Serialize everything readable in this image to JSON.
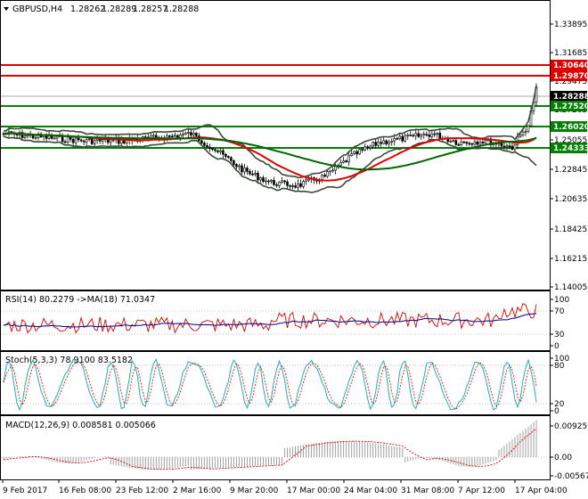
{
  "header": {
    "symbol": "GBPUSD,H4",
    "open": "1.28262",
    "high": "1.28289",
    "low": "1.28257",
    "close": "1.28288"
  },
  "price_pane": {
    "axis_labels": [
      "1.33895",
      "1.31685",
      "1.29475",
      "1.27265",
      "1.25055",
      "1.22845",
      "1.20635",
      "1.18425",
      "1.16215",
      "1.14005"
    ],
    "level_tags": [
      {
        "value": "1.30640",
        "color": "#e00000",
        "text_color": "#ffffff"
      },
      {
        "value": "1.29870",
        "color": "#e00000",
        "text_color": "#ffffff"
      },
      {
        "value": "1.28288",
        "color": "#000000",
        "text_color": "#ffffff"
      },
      {
        "value": "1.27520",
        "color": "#008000",
        "text_color": "#ffffff"
      },
      {
        "value": "1.26020",
        "color": "#008000",
        "text_color": "#ffffff"
      },
      {
        "value": "1.24333",
        "color": "#008000",
        "text_color": "#ffffff"
      }
    ]
  },
  "rsi_pane": {
    "title": "RSI(14) 80.2279 ->MA(18) 71.0347",
    "axis_labels": [
      "100",
      "70",
      "30",
      "0"
    ]
  },
  "stoch_pane": {
    "title": "Stoch(5,3,3) 78.9100 83.5182",
    "axis_labels": [
      "100",
      "80",
      "20",
      "0"
    ]
  },
  "macd_pane": {
    "title": "MACD(12,26,9) 0.008581 0.005066",
    "axis_labels": [
      "0.009259",
      "0.00",
      "-0.005674"
    ]
  },
  "time_axis": [
    "9 Feb 2017",
    "16 Feb 08:00",
    "23 Feb 12:00",
    "2 Mar 16:00",
    "9 Mar 20:00",
    "17 Mar 00:00",
    "24 Mar 04:00",
    "31 Mar 08:00",
    "7 Apr 12:00",
    "17 Apr 04:00"
  ],
  "colors": {
    "candle": "#000000",
    "support": "#008000",
    "resistance": "#e00000",
    "ma_red": "#e00000",
    "ma_green": "#006400",
    "bollinger": "#3a4a3a",
    "rsi_line": "#e00000",
    "rsi_ma": "#000080",
    "stoch_main": "#20b2aa",
    "stoch_signal": "#e00000",
    "macd_hist": "#a0a0a0",
    "macd_signal": "#e00000"
  }
}
